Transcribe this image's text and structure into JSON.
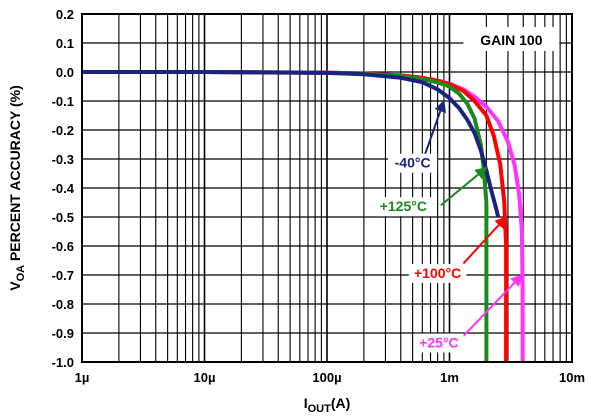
{
  "chart_data": {
    "type": "line",
    "xlabel": {
      "main": "I",
      "sub": "OUT",
      "unit": "(A)"
    },
    "ylabel": {
      "pre": "V",
      "sub": "OA",
      "post": " PERCENT ACCURACY (%)"
    },
    "x_scale": "log",
    "xlim": [
      1e-06,
      0.01
    ],
    "ylim": [
      -1.0,
      0.2
    ],
    "grid": true,
    "x_ticks": [
      {
        "value": 1e-06,
        "label": "1µ"
      },
      {
        "value": 1e-05,
        "label": "10µ"
      },
      {
        "value": 0.0001,
        "label": "100µ"
      },
      {
        "value": 0.001,
        "label": "1m"
      },
      {
        "value": 0.01,
        "label": "10m"
      }
    ],
    "y_ticks": [
      {
        "value": 0.2,
        "label": "0.2"
      },
      {
        "value": 0.1,
        "label": "0.1"
      },
      {
        "value": 0.0,
        "label": "0.0"
      },
      {
        "value": -0.1,
        "label": "-0.1"
      },
      {
        "value": -0.2,
        "label": "-0.2"
      },
      {
        "value": -0.3,
        "label": "-0.3"
      },
      {
        "value": -0.4,
        "label": "-0.4"
      },
      {
        "value": -0.5,
        "label": "-0.5"
      },
      {
        "value": -0.6,
        "label": "-0.6"
      },
      {
        "value": -0.7,
        "label": "-0.7"
      },
      {
        "value": -0.8,
        "label": "-0.8"
      },
      {
        "value": -0.9,
        "label": "-0.9"
      },
      {
        "value": -1.0,
        "label": "-1.0"
      }
    ],
    "box_annotation": "GAIN 100",
    "series": [
      {
        "name": "+25°C",
        "color": "#ff33ff",
        "x": [
          1e-06,
          1e-05,
          0.0001,
          0.0002,
          0.0004,
          0.0006,
          0.0008,
          0.001,
          0.0013,
          0.0016,
          0.002,
          0.0025,
          0.003,
          0.0034,
          0.0037,
          0.0039,
          0.00395,
          0.00396
        ],
        "y": [
          0.0,
          0.0,
          -0.002,
          -0.005,
          -0.012,
          -0.02,
          -0.03,
          -0.04,
          -0.06,
          -0.085,
          -0.12,
          -0.17,
          -0.24,
          -0.32,
          -0.42,
          -0.55,
          -0.75,
          -1.0
        ]
      },
      {
        "name": "+100°C",
        "color": "#ff0000",
        "x": [
          1e-06,
          1e-05,
          0.0001,
          0.0002,
          0.0004,
          0.0006,
          0.0008,
          0.001,
          0.0013,
          0.0016,
          0.002,
          0.0023,
          0.0026,
          0.0028,
          0.0029,
          0.0029
        ],
        "y": [
          0.0,
          0.0,
          -0.002,
          -0.005,
          -0.012,
          -0.02,
          -0.03,
          -0.042,
          -0.065,
          -0.1,
          -0.15,
          -0.22,
          -0.32,
          -0.45,
          -0.6,
          -1.0
        ]
      },
      {
        "name": "+125°C",
        "color": "#1a8a1a",
        "x": [
          1e-06,
          1e-05,
          0.0001,
          0.0002,
          0.0004,
          0.0006,
          0.0008,
          0.001,
          0.0012,
          0.0014,
          0.0016,
          0.0018,
          0.0019,
          0.002,
          0.002
        ],
        "y": [
          0.0,
          0.0,
          -0.003,
          -0.006,
          -0.014,
          -0.024,
          -0.036,
          -0.05,
          -0.075,
          -0.11,
          -0.16,
          -0.25,
          -0.33,
          -0.45,
          -1.0
        ]
      },
      {
        "name": "-40°C",
        "color": "#1a237e",
        "x": [
          1e-06,
          1e-05,
          0.0001,
          0.0002,
          0.0004,
          0.0006,
          0.0008,
          0.001,
          0.0012,
          0.0014,
          0.0016,
          0.0018,
          0.002,
          0.0022,
          0.0024,
          0.0025,
          0.0025
        ],
        "y": [
          0.0,
          0.0,
          -0.003,
          -0.008,
          -0.02,
          -0.035,
          -0.06,
          -0.09,
          -0.125,
          -0.165,
          -0.21,
          -0.27,
          -0.34,
          -0.41,
          -0.47,
          -0.5,
          -0.5
        ]
      }
    ],
    "annotations": [
      {
        "text": "-40°C",
        "color": "#1a237e",
        "label_at": [
          0.0005,
          -0.33
        ],
        "arrow_from": [
          0.0006,
          -0.31
        ],
        "arrow_to": [
          0.0009,
          -0.1
        ]
      },
      {
        "text": "+125°C",
        "color": "#1a8a1a",
        "label_at": [
          0.00042,
          -0.48
        ],
        "arrow_from": [
          0.00085,
          -0.46
        ],
        "arrow_to": [
          0.002,
          -0.33
        ]
      },
      {
        "text": "+100°C",
        "color": "#ff0000",
        "label_at": [
          0.0008,
          -0.71
        ],
        "arrow_from": [
          0.0013,
          -0.66
        ],
        "arrow_to": [
          0.0029,
          -0.5
        ]
      },
      {
        "text": "+25°C",
        "color": "#ff33ff",
        "label_at": [
          0.00082,
          -0.95
        ],
        "arrow_from": [
          0.0013,
          -0.91
        ],
        "arrow_to": [
          0.0039,
          -0.7
        ]
      }
    ]
  }
}
